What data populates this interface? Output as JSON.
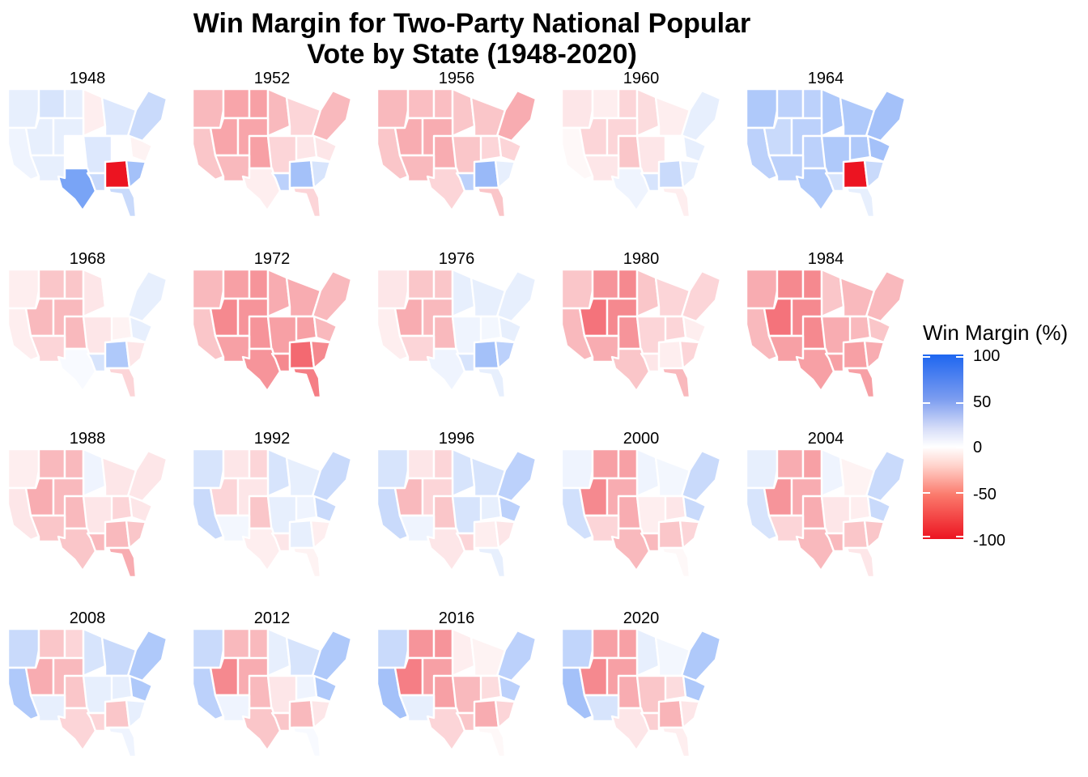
{
  "title": {
    "line1": "Win Margin for Two-Party National Popular",
    "line2": "Vote by State (1948-2020)"
  },
  "legend": {
    "title": "Win Margin (%)",
    "ticks": [
      "100",
      "50",
      "0",
      "-50",
      "-100"
    ],
    "colors": {
      "high": "#1e66f0",
      "mid": "#ffffff",
      "low": "#ec1421"
    }
  },
  "chart_data": {
    "type": "map",
    "scale": {
      "min": -100,
      "max": 100,
      "midpoint": 0
    },
    "regions": [
      "NW",
      "WM",
      "NP",
      "UM",
      "GL",
      "NE",
      "CA",
      "GB",
      "CR",
      "CP",
      "MS",
      "OH",
      "MA",
      "SW",
      "TX",
      "SC",
      "DS",
      "SA",
      "FL"
    ],
    "panels": [
      {
        "year": "1948",
        "values": [
          5,
          10,
          5,
          -3,
          8,
          15,
          3,
          5,
          5,
          0,
          8,
          0,
          -2,
          5,
          50,
          15,
          -100,
          30,
          15
        ]
      },
      {
        "year": "1952",
        "values": [
          -20,
          -28,
          -30,
          -20,
          -10,
          -20,
          -15,
          -28,
          -28,
          -30,
          -10,
          -5,
          -5,
          -20,
          -3,
          20,
          30,
          10,
          -10
        ]
      },
      {
        "year": "1956",
        "values": [
          -20,
          -18,
          -18,
          -15,
          -15,
          -25,
          -15,
          -25,
          -25,
          -25,
          -15,
          -10,
          -10,
          -20,
          -10,
          20,
          35,
          5,
          -15
        ]
      },
      {
        "year": "1960",
        "values": [
          -5,
          -3,
          -10,
          -8,
          -3,
          5,
          -1,
          -10,
          -10,
          -15,
          -5,
          0,
          5,
          -5,
          3,
          10,
          15,
          5,
          -3
        ]
      },
      {
        "year": "1964",
        "values": [
          25,
          20,
          20,
          25,
          25,
          30,
          20,
          15,
          20,
          20,
          25,
          25,
          30,
          20,
          25,
          10,
          -100,
          15,
          5
        ]
      },
      {
        "year": "1968",
        "values": [
          -3,
          -15,
          -15,
          -5,
          0,
          5,
          -3,
          -20,
          -20,
          -20,
          -5,
          -2,
          5,
          -10,
          1,
          10,
          25,
          -5,
          -10
        ]
      },
      {
        "year": "1972",
        "values": [
          -20,
          -30,
          -35,
          -25,
          -25,
          -20,
          -15,
          -40,
          -35,
          -35,
          -30,
          -30,
          -20,
          -30,
          -35,
          -40,
          -55,
          -40,
          -45
        ]
      },
      {
        "year": "1976",
        "values": [
          -5,
          -15,
          -15,
          5,
          5,
          5,
          -3,
          -25,
          -20,
          -20,
          3,
          2,
          5,
          -10,
          3,
          10,
          30,
          20,
          5
        ]
      },
      {
        "year": "1980",
        "values": [
          -15,
          -35,
          -40,
          -15,
          -10,
          -10,
          -20,
          -50,
          -40,
          -35,
          -10,
          -10,
          -3,
          -25,
          -15,
          -5,
          -3,
          -10,
          -20
        ]
      },
      {
        "year": "1984",
        "values": [
          -25,
          -40,
          -40,
          -15,
          -20,
          -20,
          -20,
          -50,
          -40,
          -40,
          -25,
          -20,
          -15,
          -30,
          -30,
          -30,
          -30,
          -25,
          -30
        ]
      },
      {
        "year": "1988",
        "values": [
          -3,
          -20,
          -20,
          3,
          -5,
          -5,
          -5,
          -25,
          -20,
          -20,
          -5,
          -10,
          -5,
          -15,
          -15,
          -20,
          -20,
          -15,
          -25
        ]
      },
      {
        "year": "1992",
        "values": [
          10,
          -5,
          -10,
          10,
          5,
          15,
          15,
          -10,
          -5,
          -15,
          5,
          3,
          15,
          2,
          -3,
          -5,
          5,
          -3,
          -2
        ]
      },
      {
        "year": "1996",
        "values": [
          10,
          -5,
          -10,
          10,
          10,
          20,
          15,
          -20,
          -10,
          -15,
          10,
          5,
          20,
          3,
          -5,
          -10,
          -3,
          -5,
          5
        ]
      },
      {
        "year": "2000",
        "values": [
          3,
          -30,
          -30,
          3,
          2,
          15,
          12,
          -40,
          -25,
          -25,
          -3,
          -5,
          15,
          -10,
          -20,
          -20,
          -15,
          -10,
          -1
        ]
      },
      {
        "year": "2004",
        "values": [
          5,
          -25,
          -30,
          3,
          -2,
          15,
          10,
          -35,
          -25,
          -25,
          -5,
          -3,
          15,
          -10,
          -20,
          -20,
          -15,
          -15,
          -5
        ]
      },
      {
        "year": "2008",
        "values": [
          15,
          -15,
          -10,
          10,
          15,
          25,
          25,
          -25,
          -20,
          -15,
          5,
          5,
          25,
          5,
          -10,
          -10,
          -15,
          5,
          3
        ]
      },
      {
        "year": "2012",
        "values": [
          15,
          -20,
          -20,
          5,
          10,
          25,
          20,
          -40,
          -25,
          -20,
          -5,
          3,
          25,
          3,
          -15,
          -15,
          -20,
          -5,
          1
        ]
      },
      {
        "year": "2016",
        "values": [
          15,
          -35,
          -35,
          -3,
          -2,
          20,
          30,
          -45,
          -30,
          -30,
          -20,
          -8,
          20,
          5,
          -10,
          -15,
          -25,
          -10,
          -1
        ]
      },
      {
        "year": "2020",
        "values": [
          18,
          -30,
          -30,
          5,
          2,
          25,
          30,
          -40,
          -30,
          -25,
          -15,
          -8,
          25,
          10,
          -5,
          -12,
          -22,
          -5,
          -3
        ]
      }
    ]
  }
}
